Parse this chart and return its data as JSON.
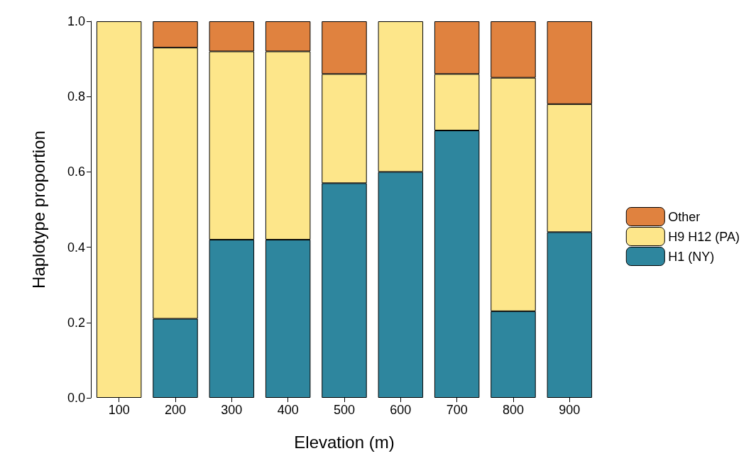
{
  "chart_data": {
    "type": "bar",
    "stacked": true,
    "xlabel": "Elevation (m)",
    "ylabel": "Haplotype proportion",
    "categories": [
      "100",
      "200",
      "300",
      "400",
      "500",
      "600",
      "700",
      "800",
      "900"
    ],
    "series": [
      {
        "name": "H1 (NY)",
        "color": "#2e869e",
        "values": [
          0,
          0.21,
          0.42,
          0.42,
          0.57,
          0.6,
          0.71,
          0.23,
          0.44
        ]
      },
      {
        "name": "H9 H12 (PA)",
        "color": "#fde68a",
        "values": [
          1,
          0.72,
          0.5,
          0.5,
          0.29,
          0.4,
          0.15,
          0.62,
          0.34
        ]
      },
      {
        "name": "Other",
        "color": "#e0823f",
        "values": [
          0,
          0.07,
          0.08,
          0.08,
          0.14,
          0,
          0.14,
          0.15,
          0.22
        ]
      }
    ],
    "ylim": [
      0,
      1
    ],
    "yticks": [
      {
        "value": 0,
        "label": "0.0"
      },
      {
        "value": 0.2,
        "label": "0.2"
      },
      {
        "value": 0.4,
        "label": "0.4"
      },
      {
        "value": 0.6,
        "label": "0.6"
      },
      {
        "value": 0.8,
        "label": "0.8"
      },
      {
        "value": 1,
        "label": "1.0"
      }
    ],
    "grid": false,
    "legend": "right"
  }
}
